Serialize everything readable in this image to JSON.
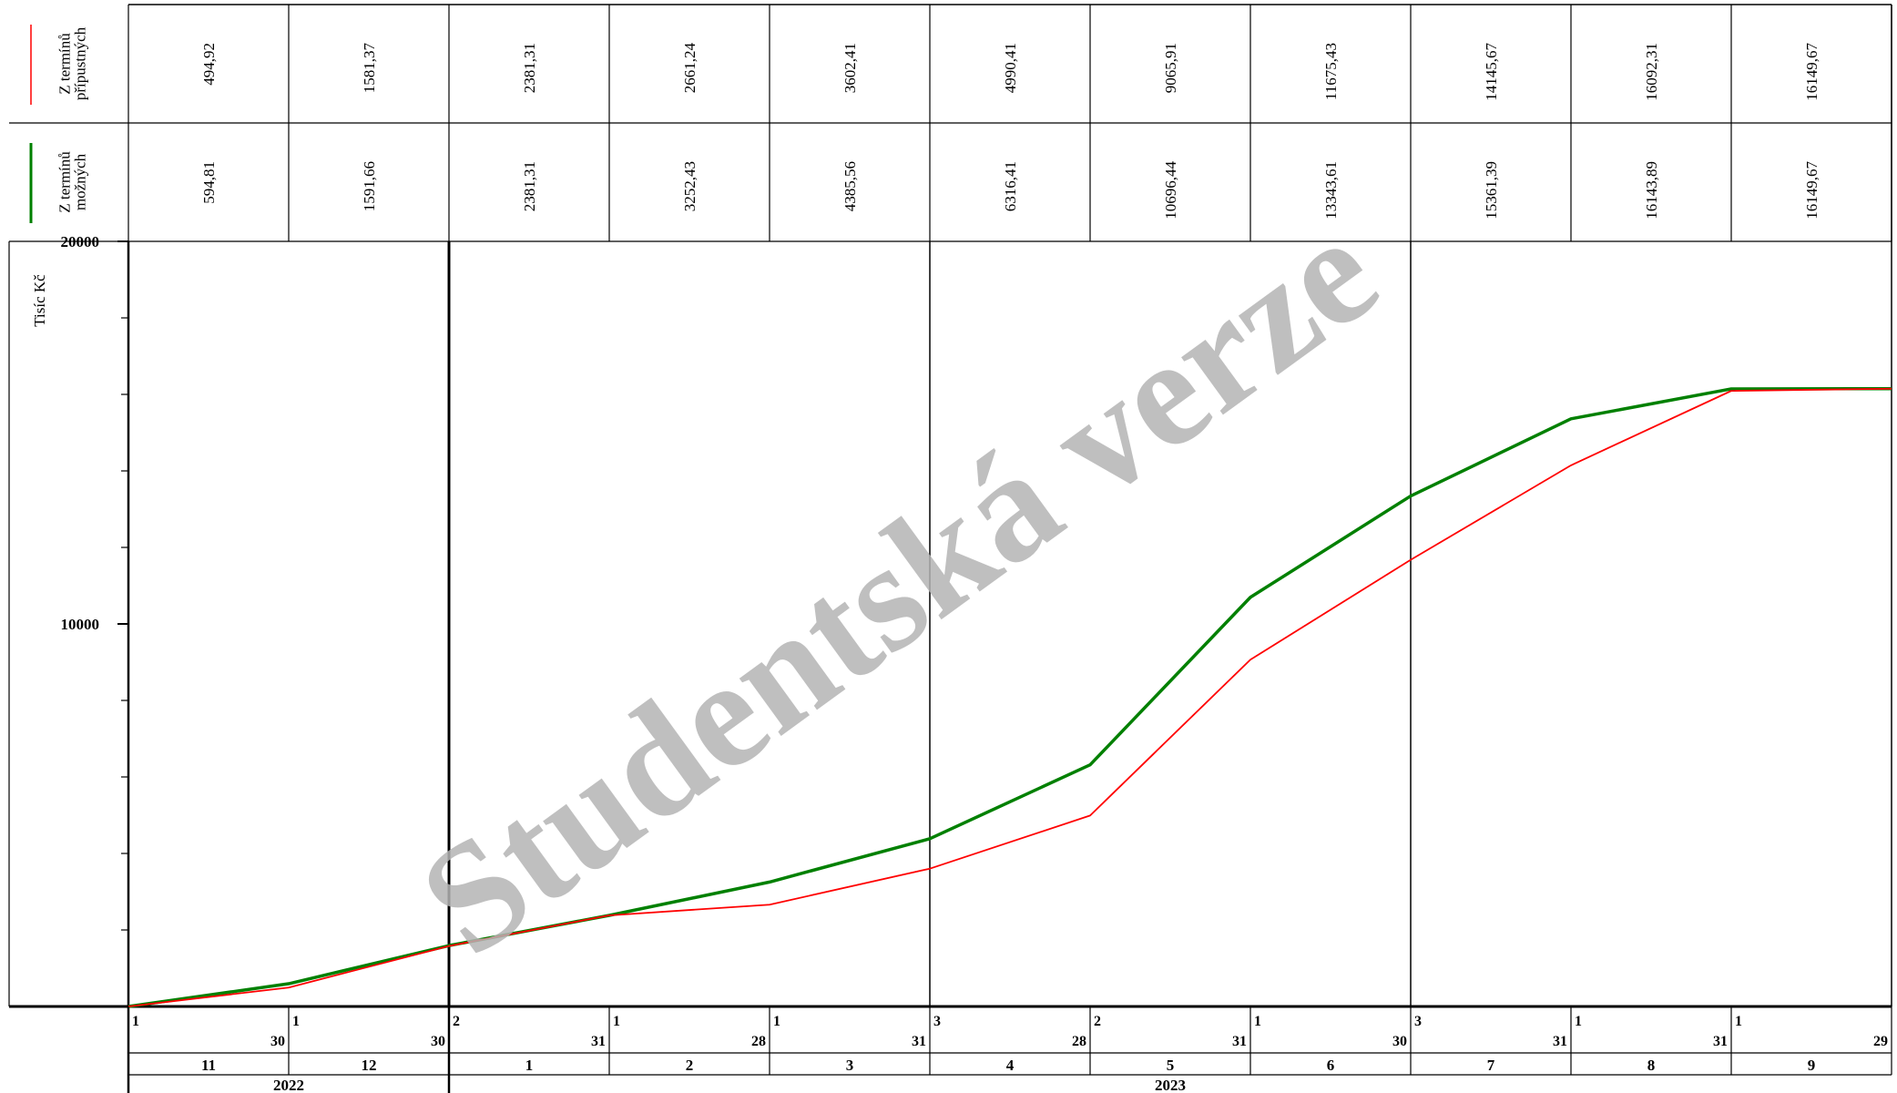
{
  "chart_data": {
    "type": "line",
    "ylabel": "Tisíc Kč",
    "ylim": [
      0,
      20000
    ],
    "y_ticks": [
      "20000",
      "10000"
    ],
    "x": [
      "2022-11-30",
      "2022-12-30",
      "2023-01-31",
      "2023-02-28",
      "2023-03-31",
      "2023-04-28",
      "2023-05-31",
      "2023-06-30",
      "2023-07-31",
      "2023-08-31",
      "2023-09-29"
    ],
    "series": [
      {
        "name": "Z termínů přípustných",
        "color": "#ff0000",
        "values": [
          494.92,
          1581.37,
          2381.31,
          2661.24,
          3602.41,
          4990.41,
          9065.91,
          11675.43,
          14145.67,
          16092.31,
          16149.67
        ],
        "labels": [
          "494,92",
          "1581,37",
          "2381,31",
          "2661,24",
          "3602,41",
          "4990,41",
          "9065,91",
          "11675,43",
          "14145,67",
          "16092,31",
          "16149,67"
        ]
      },
      {
        "name": "Z termínů možných",
        "color": "#008000",
        "values": [
          594.81,
          1591.66,
          2381.31,
          3252.43,
          4385.56,
          6316.41,
          10696.44,
          13343.61,
          15361.39,
          16143.89,
          16149.67
        ],
        "labels": [
          "594,81",
          "1591,66",
          "2381,31",
          "3252,43",
          "4385,56",
          "6316,41",
          "10696,44",
          "13343,61",
          "15361,39",
          "16143,89",
          "16149,67"
        ]
      }
    ],
    "header_names": [
      "Z termínů\npřípustných",
      "Z termínů\nmožných"
    ],
    "time_axis": {
      "periods": [
        {
          "start": "1",
          "end": "30",
          "month": "11",
          "mark": false
        },
        {
          "start": "1",
          "end": "30",
          "month": "12",
          "mark": false
        },
        {
          "start": "2",
          "end": "31",
          "month": "1",
          "mark": true
        },
        {
          "start": "1",
          "end": "28",
          "month": "2",
          "mark": false
        },
        {
          "start": "1",
          "end": "31",
          "month": "3",
          "mark": false
        },
        {
          "start": "3",
          "end": "28",
          "month": "4",
          "mark": true
        },
        {
          "start": "2",
          "end": "31",
          "month": "5",
          "mark": false
        },
        {
          "start": "1",
          "end": "30",
          "month": "6",
          "mark": false
        },
        {
          "start": "3",
          "end": "31",
          "month": "7",
          "mark": true
        },
        {
          "start": "1",
          "end": "31",
          "month": "8",
          "mark": false
        },
        {
          "start": "1",
          "end": "29",
          "month": "9",
          "mark": false
        }
      ],
      "years": [
        {
          "label": "2022",
          "from": 0,
          "to": 2
        },
        {
          "label": "2023",
          "from": 2,
          "to": 11
        }
      ]
    },
    "watermark": "Studentská verze"
  }
}
